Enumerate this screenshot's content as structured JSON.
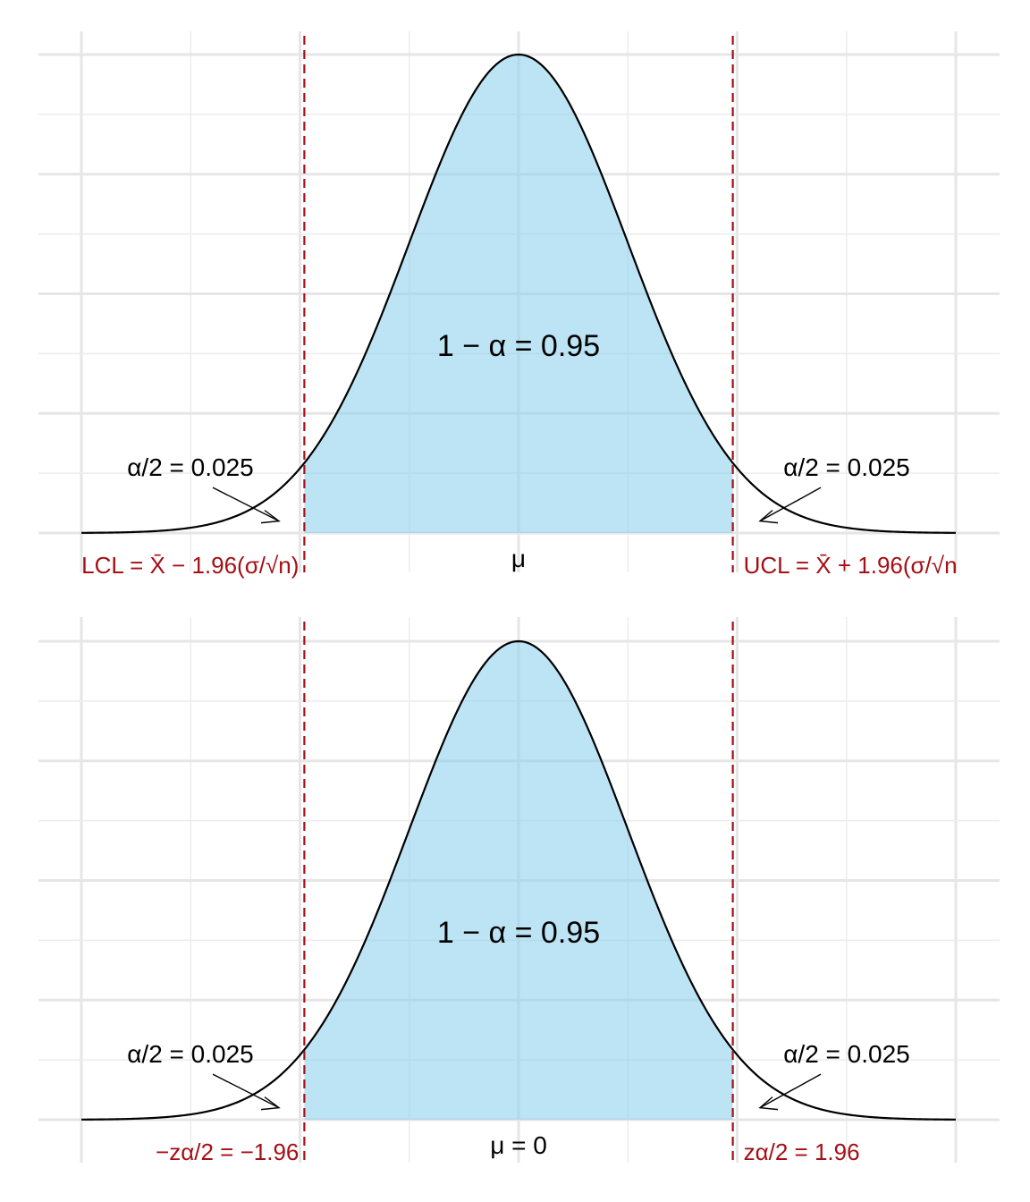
{
  "colors": {
    "shade": "#87ceeb",
    "critical_line": "#a50f15",
    "curve": "#000000",
    "grid": "#e6e6e6"
  },
  "chart_data": [
    {
      "type": "area",
      "distribution": "normal",
      "xlim": [
        -4,
        4
      ],
      "critical_values": [
        -1.96,
        1.96
      ],
      "grid": true,
      "labels": {
        "center": "1 − α = 0.95",
        "left_tail": "α/2 = 0.025",
        "right_tail": "α/2 = 0.025",
        "left_limit": "LCL = X̄ − 1.96(σ/√n)",
        "right_limit": "UCL = X̄ + 1.96(σ/√n",
        "mean": "μ"
      }
    },
    {
      "type": "area",
      "distribution": "normal",
      "xlim": [
        -4,
        4
      ],
      "critical_values": [
        -1.96,
        1.96
      ],
      "grid": true,
      "labels": {
        "center": "1 − α = 0.95",
        "left_tail": "α/2 = 0.025",
        "right_tail": "α/2 = 0.025",
        "left_limit": "−zα/2 = −1.96",
        "right_limit": "zα/2 = 1.96",
        "mean": "μ = 0"
      }
    }
  ]
}
